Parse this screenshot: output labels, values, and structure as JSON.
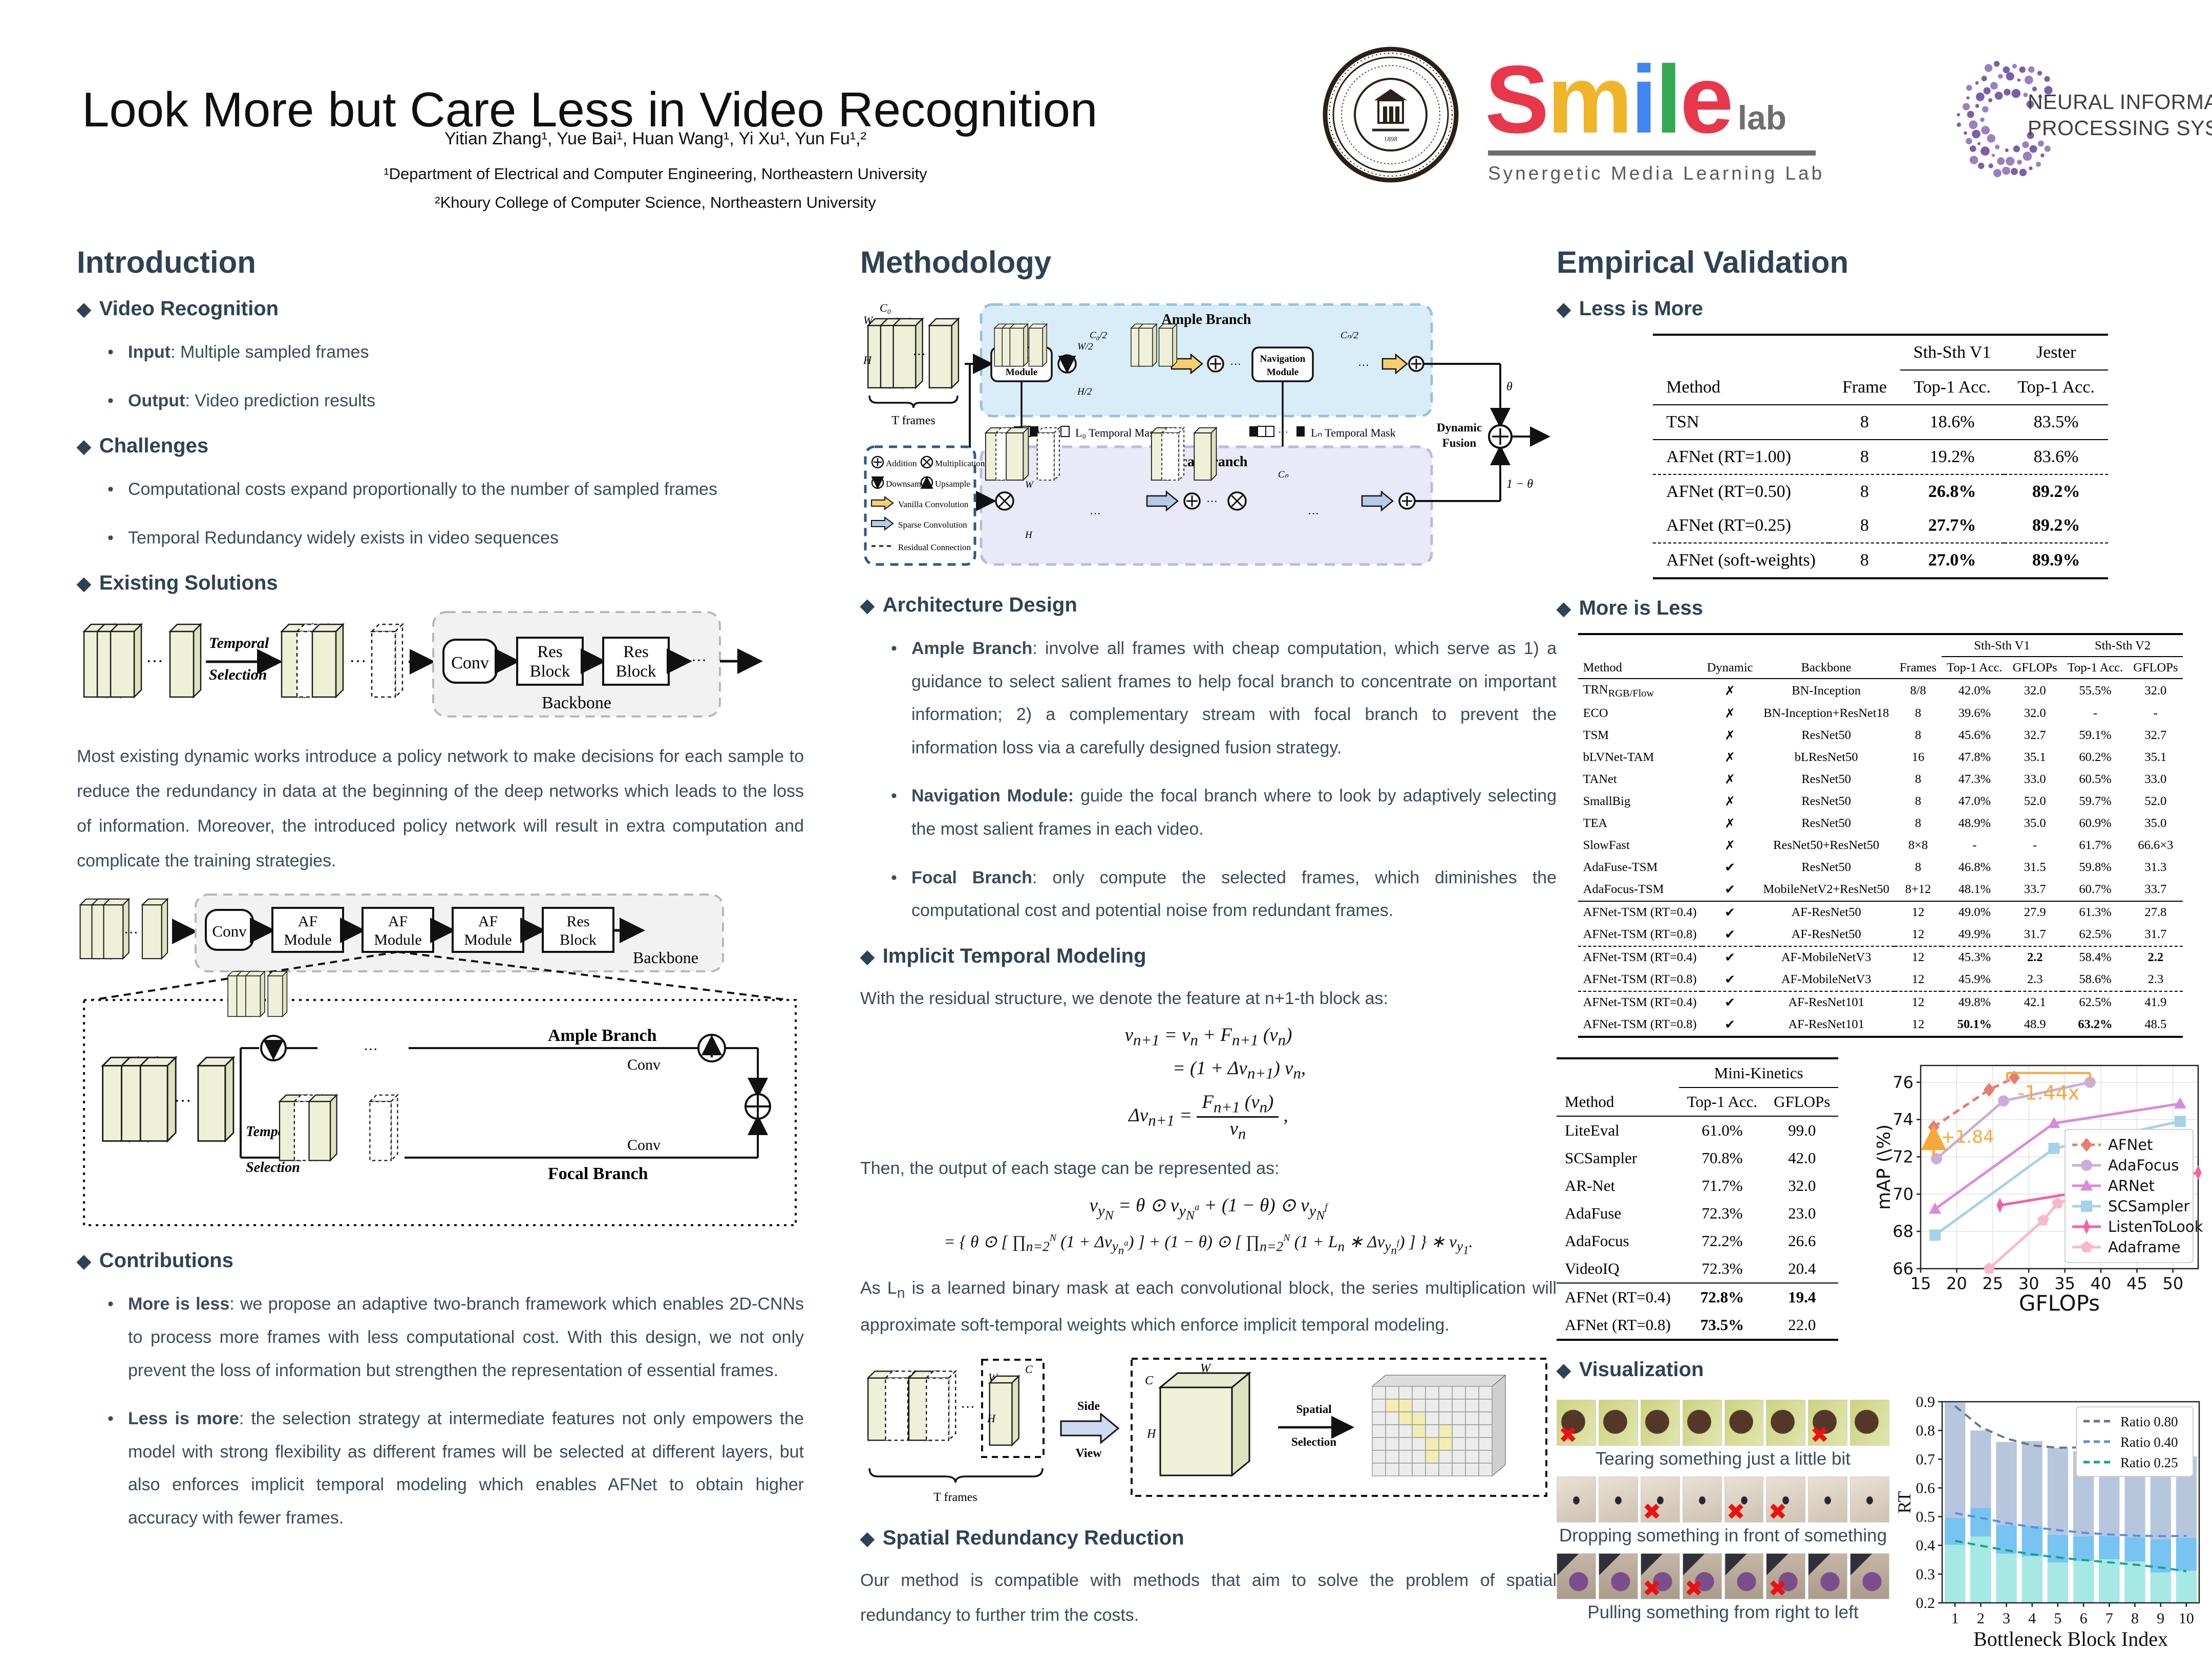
{
  "header": {
    "title": "Look More but Care Less in Video Recognition",
    "authors": "Yitian Zhang¹, Yue Bai¹, Huan Wang¹, Yi Xu¹, Yun Fu¹,²",
    "affil1": "¹Department of Electrical and Computer Engineering, Northeastern University",
    "affil2": "²Khoury College of Computer Science, Northeastern University",
    "smile": {
      "letters": [
        {
          "t": "S",
          "c": "#e8374a"
        },
        {
          "t": "m",
          "c": "#f0b429"
        },
        {
          "t": "i",
          "c": "#4285f4"
        },
        {
          "t": "l",
          "c": "#34a853"
        },
        {
          "t": "e",
          "c": "#e8374a"
        }
      ],
      "lab": "lab",
      "tagline": "Synergetic Media Learning Lab"
    },
    "neurips": {
      "line1": "NEURAL INFORMATION",
      "line2": "PROCESSING SYSTEMS",
      "color": "#7c5fa8"
    }
  },
  "intro": {
    "heading": "Introduction",
    "s1": {
      "title": "Video Recognition",
      "items": [
        {
          "b": "Input",
          "t": ": Multiple sampled frames"
        },
        {
          "b": "Output",
          "t": ": Video prediction results"
        }
      ]
    },
    "s2": {
      "title": "Challenges",
      "items": [
        {
          "b": "",
          "t": "Computational costs expand proportionally to the number of sampled frames"
        },
        {
          "b": "",
          "t": "Temporal Redundancy widely exists in video sequences"
        }
      ]
    },
    "s3": {
      "title": "Existing Solutions"
    },
    "diagram1": {
      "temporal": "Temporal",
      "selection": "Selection",
      "conv": "Conv",
      "res1": "Res",
      "block1": "Block",
      "res2": "Res",
      "block2": "Block",
      "backbone": "Backbone",
      "dots": "···"
    },
    "paragraph": "Most existing dynamic works introduce a policy network to make decisions for each sample to reduce the redundancy in data at the beginning of the deep networks which leads to the loss of information. Moreover, the introduced policy network will result in extra computation and complicate the training strategies.",
    "diagram2": {
      "conv": "Conv",
      "af": "AF",
      "module": "Module",
      "res": "Res",
      "block": "Block",
      "backbone": "Backbone",
      "ample": "Ample Branch",
      "focal": "Focal Branch",
      "temporal": "Temporal",
      "selection": "Selection",
      "conv_a": "Conv",
      "conv_f": "Conv",
      "dots": "···"
    },
    "s4": {
      "title": "Contributions",
      "items": [
        {
          "b": "More is less",
          "t": ": we propose an adaptive two-branch framework which enables 2D-CNNs to process more frames with less computational cost. With this design, we not only prevent the loss of information but strengthen the representation of essential frames."
        },
        {
          "b": "Less is more",
          "t": ": the selection strategy at intermediate features not only empowers the model with strong flexibility as different frames will be selected at different layers, but also enforces implicit temporal modeling which enables AFNet to obtain higher accuracy with fewer frames."
        }
      ]
    }
  },
  "method": {
    "heading": "Methodology",
    "diagram": {
      "ample": "Ample Branch",
      "focal": "Focal Branch",
      "nav1a": "Navigation",
      "nav1b": "Module",
      "nav2a": "Navigation",
      "nav2b": "Module",
      "c0": "C₀",
      "w": "W",
      "h": "H",
      "tframes": "T frames",
      "c0h": "C₀/2",
      "wh": "W/2",
      "hh": "H/2",
      "cnh": "Cₙ/2",
      "cn": "Cₙ",
      "mask0": "L₀ Temporal Mask",
      "maskn": "Lₙ Temporal Mask",
      "theta": "θ",
      "onetheta": "1 − θ",
      "dyn1": "Dynamic",
      "dyn2": "Fusion",
      "leg_add": "Addition",
      "leg_mul": "Multiplication",
      "leg_down": "Downsample",
      "leg_up": "Upsample",
      "leg_vanilla": "Vanilla Convolution",
      "leg_sparse": "Sparse Convolution",
      "leg_res": "Residual Connection",
      "dots": "···"
    },
    "arch": {
      "title": "Architecture Design",
      "items": [
        {
          "b": "Ample Branch",
          "t": ": involve all frames with cheap computation, which serve as 1) a guidance to select salient frames to help focal branch to concentrate on important information; 2) a complementary stream with focal branch to prevent the information loss via a carefully designed fusion strategy."
        },
        {
          "b": "Navigation Module:",
          "t": " guide the focal branch where to look by adaptively selecting the most salient frames in each video."
        },
        {
          "b": "Focal Branch",
          "t": ": only compute the selected frames, which diminishes the computational cost and potential noise from redundant frames."
        }
      ]
    },
    "itm": {
      "title": "Implicit Temporal Modeling",
      "lead1": "With the residual structure, we denote the feature at n+1-th block as:",
      "eq1a": "v_{n+1} = v_{n} + F_{n+1} (v_{n})",
      "eq1b": "= (1 + Δv_{n+1}) v_{n},",
      "eq2pre": "Δv_{n+1} =",
      "eq2num": "F_{n+1} (v_{n})",
      "eq2den": "v_{n}",
      "eq2post": ",",
      "lead2": "Then, the output of each stage can be represented as:",
      "eq3a": "v_{y_{N}} = θ ⊙ v_{y_{N}^{a}} + (1 − θ) ⊙ v_{y_{N}^{f}}",
      "eq3b": "= { θ ⊙ [ ∏_{n=2}^{N} (1 + Δv_{y_{n}^{a}}) ] + (1 − θ) ⊙ [ ∏_{n=2}^{N} (1 + L_{n} ∗ Δv_{y_{n}^{f}}) ] } ∗ v_{y_{1}}.",
      "tail": "As L_{n} is a learned binary mask at each convolutional block, the series multiplication will approximate soft-temporal weights which enforce implicit temporal modeling."
    },
    "sidediag": {
      "side": "Side",
      "view": "View",
      "spatial": "Spatial",
      "selection": "Selection",
      "tframes": "T frames",
      "c1": "C",
      "w1": "W",
      "h1": "H",
      "c2": "C",
      "w2": "W",
      "h2": "H",
      "dots": "···"
    },
    "srr": {
      "title": "Spatial Redundancy Reduction",
      "text": "Our method is compatible with methods that aim to solve the problem of spatial redundancy to further trim the costs."
    }
  },
  "validation": {
    "heading": "Empirical Validation",
    "t1": {
      "title": "Less is More",
      "col_method": "Method",
      "col_frame": "Frame",
      "g1": "Sth-Sth V1",
      "g2": "Jester",
      "sub1": "Top-1 Acc.",
      "sub2": "Top-1 Acc.",
      "rows": [
        {
          "cells": [
            "TSN",
            "8",
            "18.6%",
            "83.5%"
          ],
          "sep": "mid"
        },
        {
          "cells": [
            "AFNet (RT=1.00)",
            "8",
            "19.2%",
            "83.6%"
          ],
          "sep": "mid"
        },
        {
          "cells": [
            "AFNet (RT=0.50)",
            "8",
            "**26.8%**",
            "**89.2%**"
          ],
          "sep": "dash"
        },
        {
          "cells": [
            "AFNet (RT=0.25)",
            "8",
            "**27.7%**",
            "**89.2%**"
          ],
          "sep": "none"
        },
        {
          "cells": [
            "AFNet (soft-weights)",
            "8",
            "**27.0%**",
            "**89.9%**"
          ],
          "sep": "dash"
        }
      ]
    },
    "t2": {
      "title": "More is Less",
      "col_method": "Method",
      "col_dynamic": "Dynamic",
      "col_backbone": "Backbone",
      "col_frames": "Frames",
      "g1": "Sth-Sth V1",
      "g2": "Sth-Sth V2",
      "sub_acc": "Top-1 Acc.",
      "sub_gf": "GFLOPs",
      "rows": [
        {
          "cells": [
            "TRN_{RGB/Flow}",
            "✗",
            "BN-Inception",
            "8/8",
            "42.0%",
            "32.0",
            "55.5%",
            "32.0"
          ],
          "sep": "mid"
        },
        {
          "cells": [
            "ECO",
            "✗",
            "BN-Inception+ResNet18",
            "8",
            "39.6%",
            "32.0",
            "-",
            "-"
          ],
          "sep": "none"
        },
        {
          "cells": [
            "TSM",
            "✗",
            "ResNet50",
            "8",
            "45.6%",
            "32.7",
            "59.1%",
            "32.7"
          ],
          "sep": "none"
        },
        {
          "cells": [
            "bLVNet-TAM",
            "✗",
            "bLResNet50",
            "16",
            "47.8%",
            "35.1",
            "60.2%",
            "35.1"
          ],
          "sep": "none"
        },
        {
          "cells": [
            "TANet",
            "✗",
            "ResNet50",
            "8",
            "47.3%",
            "33.0",
            "60.5%",
            "33.0"
          ],
          "sep": "none"
        },
        {
          "cells": [
            "SmallBig",
            "✗",
            "ResNet50",
            "8",
            "47.0%",
            "52.0",
            "59.7%",
            "52.0"
          ],
          "sep": "none"
        },
        {
          "cells": [
            "TEA",
            "✗",
            "ResNet50",
            "8",
            "48.9%",
            "35.0",
            "60.9%",
            "35.0"
          ],
          "sep": "none"
        },
        {
          "cells": [
            "SlowFast",
            "✗",
            "ResNet50+ResNet50",
            "8×8",
            "-",
            "-",
            "61.7%",
            "66.6×3"
          ],
          "sep": "none"
        },
        {
          "cells": [
            "AdaFuse-TSM",
            "✔",
            "ResNet50",
            "8",
            "46.8%",
            "31.5",
            "59.8%",
            "31.3"
          ],
          "sep": "none"
        },
        {
          "cells": [
            "AdaFocus-TSM",
            "✔",
            "MobileNetV2+ResNet50",
            "8+12",
            "48.1%",
            "33.7",
            "60.7%",
            "33.7"
          ],
          "sep": "none"
        },
        {
          "cells": [
            "AFNet-TSM (RT=0.4)",
            "✔",
            "AF-ResNet50",
            "12",
            "49.0%",
            "27.9",
            "61.3%",
            "27.8"
          ],
          "sep": "mid"
        },
        {
          "cells": [
            "AFNet-TSM (RT=0.8)",
            "✔",
            "AF-ResNet50",
            "12",
            "49.9%",
            "31.7",
            "62.5%",
            "31.7"
          ],
          "sep": "none"
        },
        {
          "cells": [
            "AFNet-TSM (RT=0.4)",
            "✔",
            "AF-MobileNetV3",
            "12",
            "45.3%",
            "**2.2**",
            "58.4%",
            "**2.2**"
          ],
          "sep": "dash"
        },
        {
          "cells": [
            "AFNet-TSM (RT=0.8)",
            "✔",
            "AF-MobileNetV3",
            "12",
            "45.9%",
            "2.3",
            "58.6%",
            "2.3"
          ],
          "sep": "none"
        },
        {
          "cells": [
            "AFNet-TSM (RT=0.4)",
            "✔",
            "AF-ResNet101",
            "12",
            "49.8%",
            "42.1",
            "62.5%",
            "41.9"
          ],
          "sep": "dash"
        },
        {
          "cells": [
            "AFNet-TSM (RT=0.8)",
            "✔",
            "AF-ResNet101",
            "12",
            "**50.1%**",
            "48.9",
            "**63.2%**",
            "48.5"
          ],
          "sep": "none"
        }
      ]
    },
    "t3": {
      "col_method": "Method",
      "group": "Mini-Kinetics",
      "sub1": "Top-1 Acc.",
      "sub2": "GFLOPs",
      "rows": [
        {
          "cells": [
            "LiteEval",
            "61.0%",
            "99.0"
          ],
          "sep": "mid"
        },
        {
          "cells": [
            "SCSampler",
            "70.8%",
            "42.0"
          ],
          "sep": "none"
        },
        {
          "cells": [
            "AR-Net",
            "71.7%",
            "32.0"
          ],
          "sep": "none"
        },
        {
          "cells": [
            "AdaFuse",
            "72.3%",
            "23.0"
          ],
          "sep": "none"
        },
        {
          "cells": [
            "AdaFocus",
            "72.2%",
            "26.6"
          ],
          "sep": "none"
        },
        {
          "cells": [
            "VideoIQ",
            "72.3%",
            "20.4"
          ],
          "sep": "none"
        },
        {
          "cells": [
            "AFNet (RT=0.4)",
            "**72.8%**",
            "**19.4**"
          ],
          "sep": "mid"
        },
        {
          "cells": [
            "AFNet (RT=0.8)",
            "**73.5%**",
            "22.0"
          ],
          "sep": "none"
        }
      ]
    },
    "viz": {
      "title": "Visualization",
      "rows": [
        {
          "caption": "Tearing something just a little bit",
          "style": "f-tear",
          "x_frames": [
            0,
            6
          ]
        },
        {
          "caption": "Dropping something in front of something",
          "style": "f-drop",
          "x_frames": [
            2,
            4,
            5
          ]
        },
        {
          "caption": "Pulling something from right to left",
          "style": "f-pull",
          "x_frames": [
            2,
            3,
            5
          ]
        }
      ],
      "frames_per_row": 8
    }
  },
  "chart_data": [
    {
      "type": "line",
      "title": "",
      "xlabel": "GFLOPs",
      "ylabel": "mAP (\\%)",
      "xlim": [
        15,
        53.5
      ],
      "ylim": [
        66,
        76.9
      ],
      "xticks": [
        15,
        20,
        25,
        30,
        35,
        40,
        45,
        50
      ],
      "yticks": [
        66,
        68,
        70,
        72,
        74,
        76
      ],
      "grid": true,
      "legend_position": "lower right",
      "series": [
        {
          "name": "AFNet",
          "color": "#e87c70",
          "dash": true,
          "marker": "diamond",
          "x": [
            16.8,
            24.5,
            28.0
          ],
          "y": [
            73.6,
            75.6,
            76.25
          ]
        },
        {
          "name": "AdaFocus",
          "color": "#c9aed9",
          "dash": false,
          "marker": "circle",
          "x": [
            17.2,
            26.5,
            38.5
          ],
          "y": [
            71.9,
            75.0,
            76.0
          ]
        },
        {
          "name": "ARNet",
          "color": "#d98bd9",
          "dash": false,
          "marker": "triangle",
          "x": [
            17.0,
            33.5,
            51.0
          ],
          "y": [
            69.2,
            73.8,
            74.85
          ]
        },
        {
          "name": "SCSampler",
          "color": "#a6d2e8",
          "dash": false,
          "marker": "square",
          "x": [
            17.0,
            33.5,
            51.0
          ],
          "y": [
            67.8,
            72.45,
            73.9
          ]
        },
        {
          "name": "ListenToLook",
          "color": "#f75fa4",
          "dash": false,
          "marker": "diamond-thin",
          "x": [
            26.0,
            53.5
          ],
          "y": [
            69.4,
            71.15
          ]
        },
        {
          "name": "Adaframe",
          "color": "#f8b8c8",
          "dash": false,
          "marker": "pentagon",
          "x": [
            24.5,
            32.0,
            34.0,
            42.0
          ],
          "y": [
            66.0,
            68.6,
            69.5,
            70.6
          ]
        }
      ],
      "annotations": [
        {
          "type": "v-arrow",
          "text": "+1.84",
          "color": "#f5a93b",
          "x": 16.8,
          "y0": 72.05,
          "y1": 73.45
        },
        {
          "type": "h-bracket",
          "text": "-1.44x",
          "color": "#f5a93b",
          "x0": 27.0,
          "x1": 38.5,
          "y": 76.5
        }
      ]
    },
    {
      "type": "bar",
      "title": "",
      "xlabel": "Bottleneck Block Index",
      "ylabel": "RT",
      "ylim": [
        0.2,
        0.9
      ],
      "yticks": [
        0.2,
        0.3,
        0.4,
        0.5,
        0.6,
        0.7,
        0.8,
        0.9
      ],
      "categories": [
        1,
        2,
        3,
        4,
        5,
        6,
        7,
        8,
        9,
        10
      ],
      "legend_position": "upper right",
      "series": [
        {
          "name": "Ratio 0.80",
          "bar_color": "#aec0d8",
          "line_color": "#64748c",
          "values": [
            0.897,
            0.8,
            0.76,
            0.763,
            0.74,
            0.727,
            0.753,
            0.737,
            0.748,
            0.71
          ],
          "trend": [
            0.885,
            0.812,
            0.772,
            0.748,
            0.74,
            0.741,
            0.748,
            0.749,
            0.744,
            0.714
          ]
        },
        {
          "name": "Ratio 0.40",
          "bar_color": "#74c3f2",
          "line_color": "#5c8be8",
          "values": [
            0.495,
            0.53,
            0.47,
            0.467,
            0.436,
            0.431,
            0.432,
            0.428,
            0.421,
            0.426
          ],
          "trend": [
            0.512,
            0.496,
            0.478,
            0.464,
            0.453,
            0.444,
            0.438,
            0.434,
            0.432,
            0.433
          ]
        },
        {
          "name": "Ratio 0.25",
          "bar_color": "#a9ebe3",
          "line_color": "#12a38c",
          "values": [
            0.402,
            0.431,
            0.371,
            0.362,
            0.341,
            0.346,
            0.352,
            0.344,
            0.306,
            0.312
          ],
          "trend": [
            0.416,
            0.399,
            0.383,
            0.369,
            0.358,
            0.349,
            0.341,
            0.333,
            0.323,
            0.31
          ]
        }
      ]
    }
  ]
}
